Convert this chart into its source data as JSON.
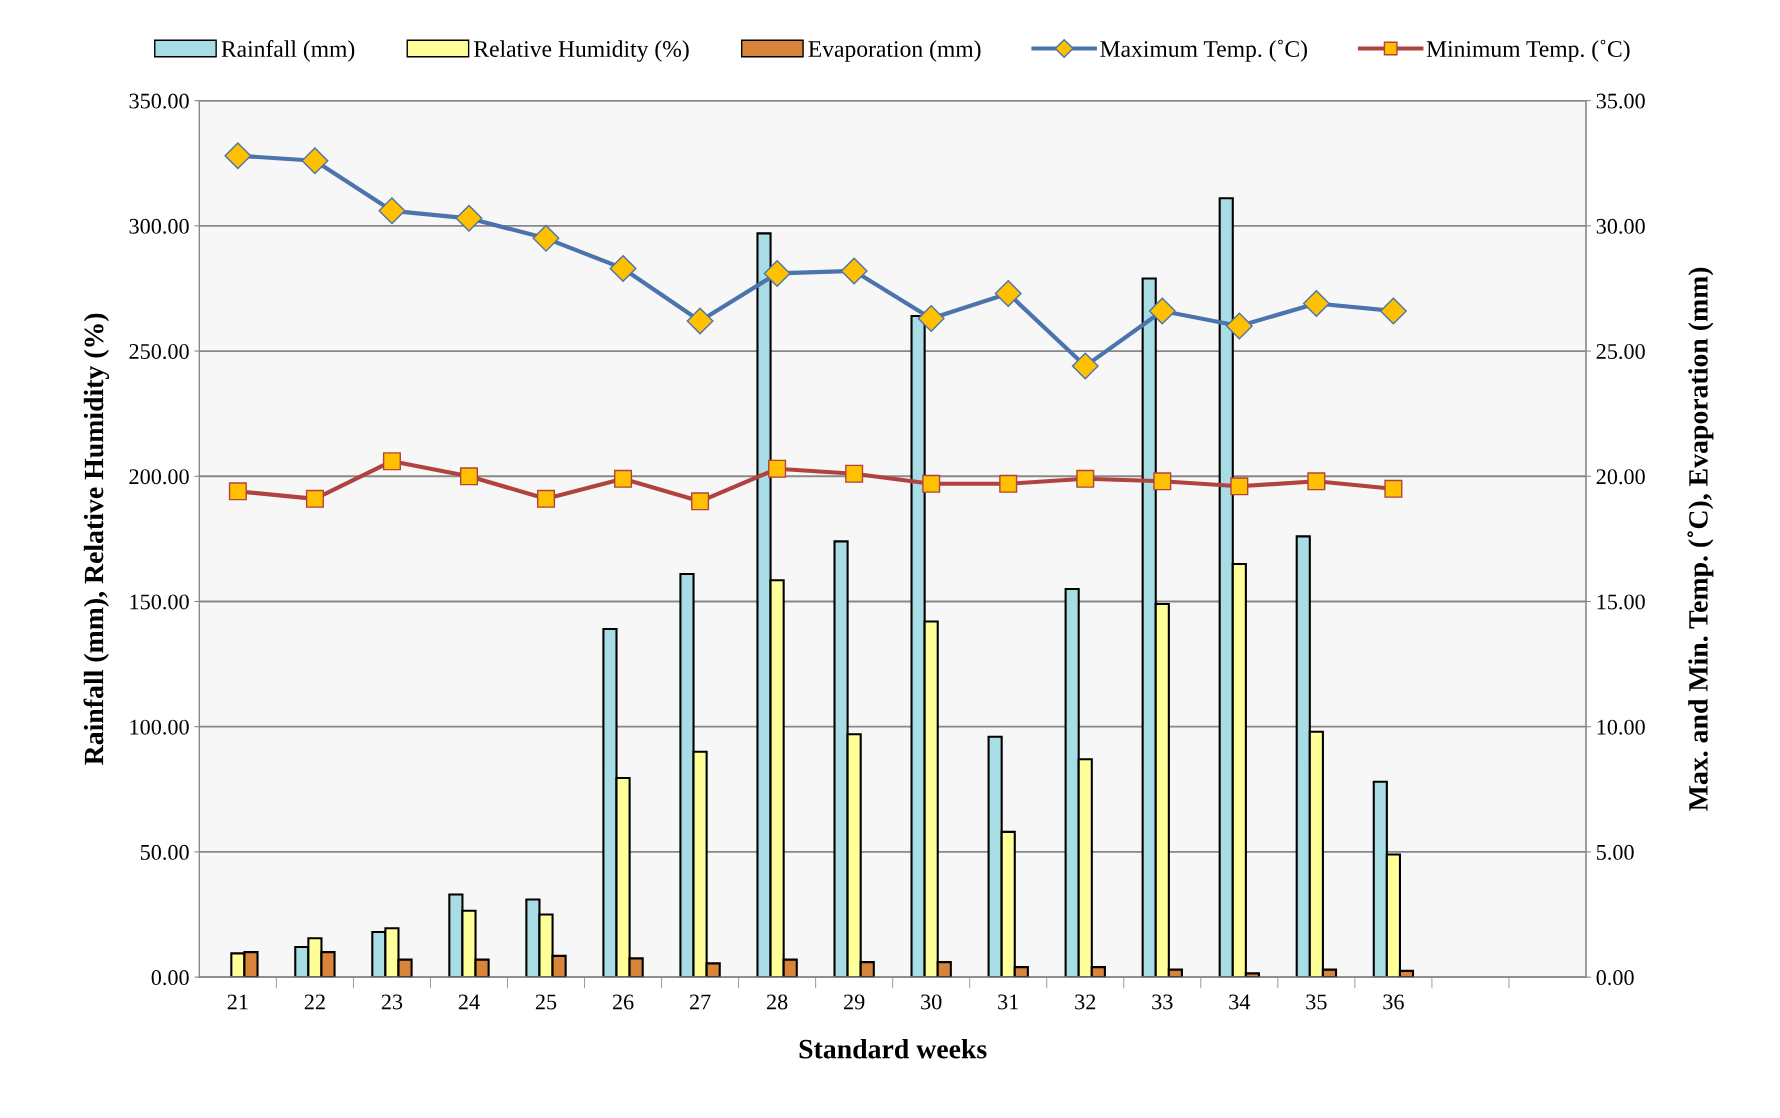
{
  "chart_data": {
    "type": "bar",
    "xlabel": "Standard weeks",
    "ylabel": "Rainfall (mm), Relative Humidity (%)",
    "y2label": "Max. and Min. Temp. (˚C), Evaporation (mm)",
    "categories": [
      "21",
      "22",
      "23",
      "24",
      "25",
      "26",
      "27",
      "28",
      "29",
      "30",
      "31",
      "32",
      "33",
      "34",
      "35",
      "36",
      null,
      null
    ],
    "series": [
      {
        "name": "Rainfall (mm)",
        "color": "#a8dde6",
        "values": [
          null,
          12,
          18,
          33,
          31,
          139,
          161,
          297,
          174,
          264,
          96,
          155,
          279,
          311,
          176,
          78,
          null,
          null
        ]
      },
      {
        "name": "Relative Humidity (%)",
        "color": "#ffff99",
        "values": [
          9.5,
          15.5,
          19.5,
          26.5,
          25,
          79.5,
          90,
          158.5,
          97,
          142,
          58,
          87,
          149,
          165,
          98,
          49,
          null,
          null
        ]
      },
      {
        "name": "Evaporation (mm)",
        "axis": "y2",
        "color": "#d9843b",
        "values": [
          1.0,
          1.0,
          0.7,
          0.7,
          0.85,
          0.75,
          0.55,
          0.7,
          0.6,
          0.6,
          0.4,
          0.4,
          0.3,
          0.15,
          0.3,
          0.25,
          null,
          null
        ]
      },
      {
        "name": "Maximum Temp. (˚C)",
        "type": "line",
        "axis": "y2",
        "color": "#4a74ab",
        "marker": "diamond",
        "values": [
          32.8,
          32.6,
          30.6,
          30.3,
          29.5,
          28.3,
          26.2,
          28.1,
          28.2,
          26.3,
          27.3,
          24.4,
          26.6,
          26.0,
          26.9,
          26.6,
          null,
          null
        ]
      },
      {
        "name": "Minimum Temp. (˚C)",
        "type": "line",
        "axis": "y2",
        "color": "#b0433f",
        "marker": "square",
        "values": [
          19.4,
          19.1,
          20.6,
          20.0,
          19.1,
          19.9,
          19.0,
          20.3,
          20.1,
          19.7,
          19.7,
          19.9,
          19.8,
          19.6,
          19.8,
          19.5,
          null,
          null
        ]
      }
    ],
    "ylim": [
      0,
      350
    ],
    "yticks": [
      {
        "value": 0,
        "label": "0.00"
      },
      {
        "value": 50,
        "label": "50.00"
      },
      {
        "value": 100,
        "label": "100.00"
      },
      {
        "value": 150,
        "label": "150.00"
      },
      {
        "value": 200,
        "label": "200.00"
      },
      {
        "value": 250,
        "label": "250.00"
      },
      {
        "value": 300,
        "label": "300.00"
      },
      {
        "value": 350,
        "label": "350.00"
      }
    ],
    "y2lim": [
      0,
      35
    ],
    "y2ticks": [
      {
        "value": 0,
        "label": "0.00"
      },
      {
        "value": 5,
        "label": "5.00"
      },
      {
        "value": 10,
        "label": "10.00"
      },
      {
        "value": 15,
        "label": "15.00"
      },
      {
        "value": 20,
        "label": "20.00"
      },
      {
        "value": 25,
        "label": "25.00"
      },
      {
        "value": 30,
        "label": "30.00"
      },
      {
        "value": 35,
        "label": "35.00"
      }
    ],
    "grid": "y",
    "legend": "top"
  }
}
